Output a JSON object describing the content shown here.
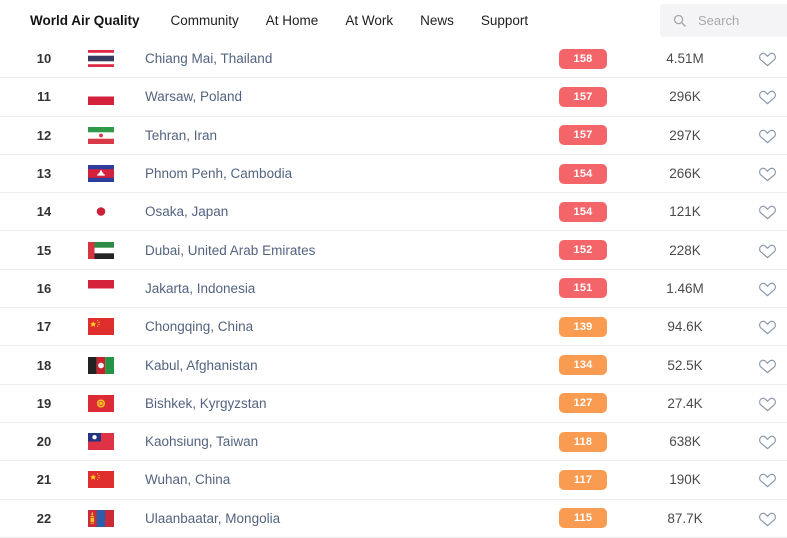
{
  "nav": {
    "brand": "World Air Quality",
    "items": [
      {
        "label": "Community"
      },
      {
        "label": "At Home"
      },
      {
        "label": "At Work"
      },
      {
        "label": "News"
      },
      {
        "label": "Support"
      }
    ],
    "search_placeholder": "Search",
    "search_icon": "magnifier",
    "search_value": ""
  },
  "colors": {
    "aqi_red": "#f46569",
    "aqi_orange": "#f99c51"
  },
  "icons": {
    "favorite": "heart-outline"
  },
  "rows": [
    {
      "rank": "10",
      "flag": "thailand",
      "city": "Chiang Mai, Thailand",
      "aqi": "158",
      "level": "red",
      "followers": "4.51M"
    },
    {
      "rank": "11",
      "flag": "poland",
      "city": "Warsaw, Poland",
      "aqi": "157",
      "level": "red",
      "followers": "296K"
    },
    {
      "rank": "12",
      "flag": "iran",
      "city": "Tehran, Iran",
      "aqi": "157",
      "level": "red",
      "followers": "297K"
    },
    {
      "rank": "13",
      "flag": "cambodia",
      "city": "Phnom Penh, Cambodia",
      "aqi": "154",
      "level": "red",
      "followers": "266K"
    },
    {
      "rank": "14",
      "flag": "japan",
      "city": "Osaka, Japan",
      "aqi": "154",
      "level": "red",
      "followers": "121K"
    },
    {
      "rank": "15",
      "flag": "uae",
      "city": "Dubai, United Arab Emirates",
      "aqi": "152",
      "level": "red",
      "followers": "228K"
    },
    {
      "rank": "16",
      "flag": "indonesia",
      "city": "Jakarta, Indonesia",
      "aqi": "151",
      "level": "red",
      "followers": "1.46M"
    },
    {
      "rank": "17",
      "flag": "china",
      "city": "Chongqing, China",
      "aqi": "139",
      "level": "orange",
      "followers": "94.6K"
    },
    {
      "rank": "18",
      "flag": "afghanistan",
      "city": "Kabul, Afghanistan",
      "aqi": "134",
      "level": "orange",
      "followers": "52.5K"
    },
    {
      "rank": "19",
      "flag": "kyrgyzstan",
      "city": "Bishkek, Kyrgyzstan",
      "aqi": "127",
      "level": "orange",
      "followers": "27.4K"
    },
    {
      "rank": "20",
      "flag": "taiwan",
      "city": "Kaohsiung, Taiwan",
      "aqi": "118",
      "level": "orange",
      "followers": "638K"
    },
    {
      "rank": "21",
      "flag": "china",
      "city": "Wuhan, China",
      "aqi": "117",
      "level": "orange",
      "followers": "190K"
    },
    {
      "rank": "22",
      "flag": "mongolia",
      "city": "Ulaanbaatar, Mongolia",
      "aqi": "115",
      "level": "orange",
      "followers": "87.7K"
    }
  ]
}
